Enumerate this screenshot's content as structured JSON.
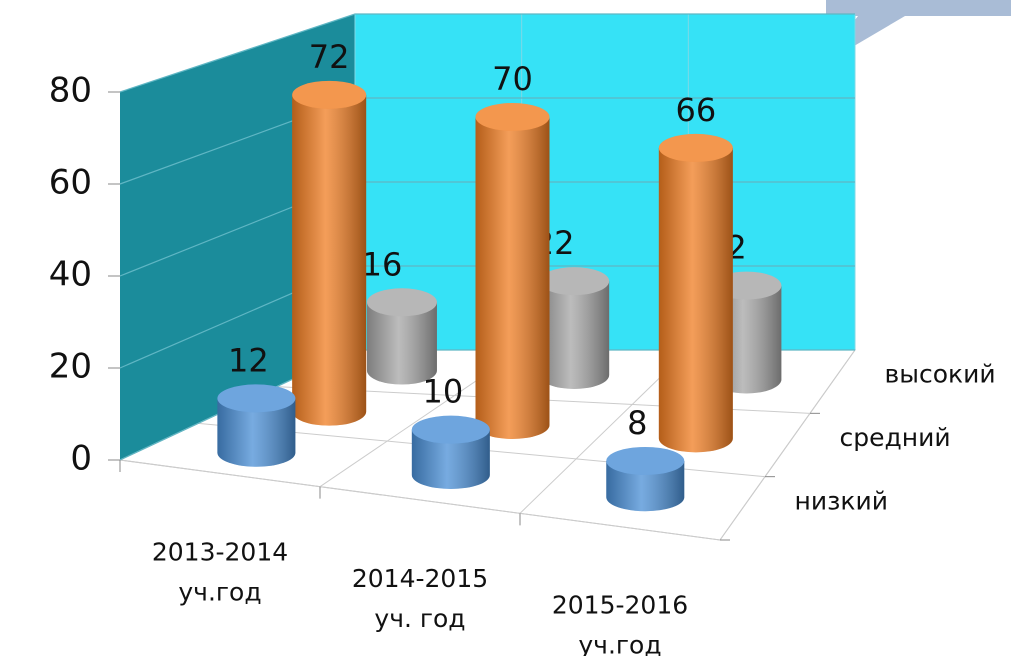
{
  "chart_data": {
    "type": "bar3d",
    "categories": [
      "2013-2014 уч.год",
      "2014-2015 уч. год",
      "2015-2016 уч.год"
    ],
    "series": [
      {
        "name": "низкий",
        "color": "#4a8fd6",
        "values": [
          12,
          10,
          8
        ]
      },
      {
        "name": "средний",
        "color": "#f07d22",
        "values": [
          72,
          70,
          66
        ]
      },
      {
        "name": "высокий",
        "color": "#a6a6a6",
        "values": [
          16,
          22,
          22
        ]
      }
    ],
    "ylim": [
      0,
      80
    ],
    "yticks": [
      0,
      20,
      40,
      60,
      80
    ],
    "grid": true
  }
}
